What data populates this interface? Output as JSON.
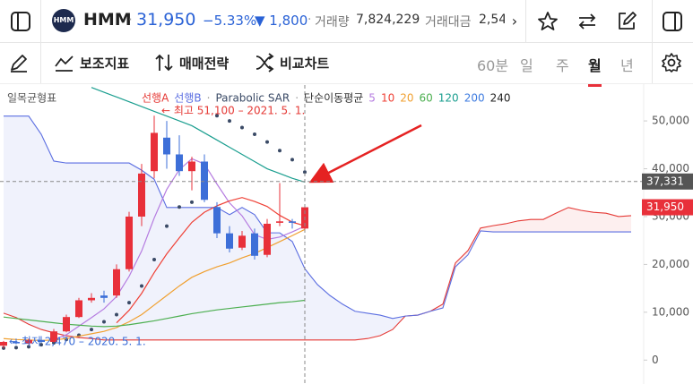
{
  "header": {
    "logo": "HMM",
    "symbol": "HMM",
    "price": "31,950",
    "change_pct": "−5.33%",
    "change": "▼ 1,800",
    "volume_label": "거래량",
    "volume": "7,824,229",
    "amount_label": "거래대금",
    "amount": "2,54"
  },
  "toolbar": {
    "indicators": "보조지표",
    "strategy": "매매전략",
    "compare": "비교차트",
    "periods": [
      "60분",
      "일",
      "주",
      "월",
      "년"
    ],
    "selected_period": "월"
  },
  "chart_data": {
    "type": "candlestick",
    "indicator_label": "일목균형표",
    "ma_label": "단순이동평균",
    "categories": [
      null,
      null,
      null,
      null,
      null,
      null,
      null,
      null,
      null,
      null,
      null,
      null,
      null,
      null,
      null,
      null,
      null,
      null,
      null,
      null,
      null,
      null,
      null,
      null,
      null,
      null,
      null,
      null,
      null,
      null,
      null,
      null,
      null,
      null,
      null,
      null,
      null,
      null,
      null,
      null,
      null,
      null,
      null,
      null,
      null,
      null,
      null,
      null,
      null,
      null,
      null
    ],
    "open": [
      3000,
      3800,
      3500,
      4200,
      3800,
      6000,
      9000,
      12500,
      13500,
      13500,
      19000,
      30000,
      39500,
      46500,
      43000,
      39500,
      41500,
      32000,
      26500,
      23500,
      26500,
      22000,
      28700,
      29000,
      27500,
      null,
      null,
      null,
      null,
      null,
      null,
      null,
      null,
      null,
      null,
      null,
      null,
      null,
      null,
      null,
      null,
      null,
      null,
      null,
      null,
      null,
      null,
      null,
      null,
      null,
      null
    ],
    "high": [
      4000,
      4500,
      4500,
      5000,
      6500,
      9500,
      13000,
      14000,
      14500,
      20000,
      31000,
      41000,
      51100,
      50000,
      47000,
      42500,
      43000,
      33000,
      28000,
      27000,
      27500,
      29500,
      37000,
      29500,
      32500,
      null,
      null,
      null,
      null,
      null,
      null,
      null,
      null,
      null,
      null,
      null,
      null,
      null,
      null,
      null,
      null,
      null,
      null,
      null,
      null,
      null,
      null,
      null,
      null,
      null,
      null
    ],
    "low": [
      2470,
      3300,
      3300,
      3600,
      3700,
      5800,
      8800,
      12000,
      12000,
      13000,
      18500,
      28000,
      38000,
      40000,
      38500,
      35500,
      33000,
      25500,
      22500,
      23000,
      21000,
      21500,
      28000,
      27500,
      27000,
      null,
      null,
      null,
      null,
      null,
      null,
      null,
      null,
      null,
      null,
      null,
      null,
      null,
      null,
      null,
      null,
      null,
      null,
      null,
      null,
      null,
      null,
      null,
      null,
      null,
      null
    ],
    "close": [
      3800,
      3500,
      4200,
      3800,
      6000,
      9000,
      12500,
      13000,
      13000,
      19000,
      30000,
      39000,
      47500,
      43000,
      39500,
      41500,
      33500,
      26500,
      23300,
      26000,
      21800,
      28500,
      29000,
      28700,
      31950,
      null,
      null,
      null,
      null,
      null,
      null,
      null,
      null,
      null,
      null,
      null,
      null,
      null,
      null,
      null,
      null,
      null,
      null,
      null,
      null,
      null,
      null,
      null,
      null,
      null,
      null
    ],
    "up_color": "#e8303a",
    "down_color": "#3d6fd8",
    "series": [
      {
        "name": "선행A",
        "color": "#e53935",
        "style": "cloud",
        "values": [
          9800,
          8900,
          7500,
          6400,
          5700,
          5100,
          4700,
          4500,
          4200,
          4200,
          4200,
          4200,
          4200,
          4200,
          4200,
          4200,
          4200,
          4200,
          4200,
          4200,
          4200,
          4200,
          4200,
          4200,
          4200,
          4200,
          4200,
          4200,
          4200,
          4500,
          5100,
          6400,
          9200,
          9400,
          10200,
          11700,
          20300,
          22900,
          27600,
          28100,
          28500,
          29100,
          29400,
          29400,
          30700,
          31900,
          31300,
          30900,
          30700,
          30000,
          30200
        ]
      },
      {
        "name": "선행B",
        "color": "#5b6ee1",
        "style": "cloud",
        "values": [
          51000,
          51000,
          51000,
          47200,
          41600,
          41200,
          41200,
          41200,
          41200,
          41200,
          41200,
          39700,
          37800,
          31900,
          31900,
          31900,
          31900,
          31900,
          30400,
          31900,
          30400,
          26600,
          26600,
          24800,
          19100,
          15800,
          13500,
          11700,
          10200,
          9800,
          9400,
          8700,
          9200,
          9400,
          10200,
          10900,
          19500,
          22000,
          27000,
          26800,
          26800,
          26800,
          26800,
          26800,
          26800,
          26800,
          26800,
          26800,
          26800,
          26800,
          26800
        ]
      },
      {
        "name": "Parabolic SAR",
        "color": "#3a4a66",
        "style": "dots",
        "values": [
          2500,
          2600,
          2800,
          3200,
          3600,
          4300,
          5200,
          6400,
          8000,
          9500,
          12000,
          15500,
          21000,
          28000,
          32000,
          33000,
          36000,
          51100,
          50000,
          48600,
          47200,
          45600,
          43800,
          41900,
          39300,
          null,
          null,
          null,
          null,
          null,
          null,
          null,
          null,
          null,
          null,
          null,
          null,
          null,
          null,
          null,
          null,
          null,
          null,
          null,
          null,
          null,
          null,
          null,
          null,
          null,
          null
        ]
      },
      {
        "name": "5",
        "color": "#b57be0",
        "style": "ma",
        "values": [
          null,
          null,
          null,
          null,
          4260,
          5300,
          7100,
          8860,
          10700,
          13300,
          17500,
          22800,
          29700,
          35700,
          39800,
          42100,
          41000,
          36800,
          32860,
          30160,
          26220,
          25220,
          25720,
          26800,
          27990,
          null,
          null,
          null,
          null,
          null,
          null,
          null,
          null,
          null,
          null,
          null,
          null,
          null,
          null,
          null,
          null,
          null,
          null,
          null,
          null,
          null,
          null,
          null,
          null,
          null,
          null
        ]
      },
      {
        "name": "10",
        "color": "#ef4136",
        "style": "ma",
        "values": [
          null,
          null,
          null,
          null,
          null,
          null,
          null,
          null,
          null,
          7780,
          10400,
          13950,
          18280,
          22200,
          25550,
          28800,
          30900,
          32250,
          33280,
          33980,
          33160,
          32110,
          30260,
          28830,
          28075,
          null,
          null,
          null,
          null,
          null,
          null,
          null,
          null,
          null,
          null,
          null,
          null,
          null,
          null,
          null,
          null,
          null,
          null,
          null,
          null,
          null,
          null,
          null,
          null,
          null,
          null
        ]
      },
      {
        "name": "20",
        "color": "#f0a030",
        "style": "ma",
        "values": [
          4500,
          4300,
          4200,
          4100,
          4200,
          4500,
          5000,
          5500,
          6000,
          6800,
          8000,
          9500,
          11500,
          13500,
          15500,
          17300,
          18500,
          19500,
          20300,
          21380,
          22280,
          23530,
          24770,
          26015,
          27310,
          null,
          null,
          null,
          null,
          null,
          null,
          null,
          null,
          null,
          null,
          null,
          null,
          null,
          null,
          null,
          null,
          null,
          null,
          null,
          null,
          null,
          null,
          null,
          null,
          null,
          null
        ]
      },
      {
        "name": "60",
        "color": "#4caf50",
        "style": "ma",
        "values": [
          9000,
          8700,
          8400,
          8100,
          7800,
          7500,
          7300,
          7100,
          7000,
          7100,
          7400,
          7800,
          8200,
          8700,
          9200,
          9700,
          10100,
          10500,
          10800,
          11100,
          11400,
          11700,
          12000,
          12200,
          12500,
          null,
          null,
          null,
          null,
          null,
          null,
          null,
          null,
          null,
          null,
          null,
          null,
          null,
          null,
          null,
          null,
          null,
          null,
          null,
          null,
          null,
          null,
          null,
          null,
          null,
          null
        ]
      },
      {
        "name": "120",
        "color": "#1a9e8f",
        "style": "ma",
        "values": [
          null,
          null,
          null,
          null,
          null,
          null,
          null,
          57000,
          56000,
          55000,
          54000,
          53000,
          52000,
          51000,
          50000,
          49000,
          47500,
          46000,
          44500,
          43000,
          41500,
          40000,
          39000,
          38000,
          37200,
          null,
          null,
          null,
          null,
          null,
          null,
          null,
          null,
          null,
          null,
          null,
          null,
          null,
          null,
          null,
          null,
          null,
          null,
          null,
          null,
          null,
          null,
          null,
          null,
          null,
          null
        ]
      },
      {
        "name": "200",
        "color": "#3d7be0",
        "style": "ma",
        "values": [
          null,
          null,
          null,
          null,
          null,
          null,
          null,
          null,
          null,
          null,
          null,
          null,
          null,
          null,
          null,
          null,
          null,
          null,
          null,
          null,
          null,
          null,
          null,
          null,
          null,
          null,
          null,
          null,
          null,
          null,
          null,
          null,
          null,
          null,
          null,
          null,
          null,
          null,
          null,
          null,
          null,
          null,
          null,
          null,
          null,
          null,
          null,
          null,
          null,
          null,
          null
        ]
      },
      {
        "name": "240",
        "color": "#222222",
        "style": "ma",
        "values": [
          null,
          null,
          null,
          null,
          null,
          null,
          null,
          null,
          null,
          null,
          null,
          null,
          null,
          null,
          null,
          null,
          null,
          null,
          null,
          null,
          null,
          null,
          null,
          null,
          null,
          null,
          null,
          null,
          null,
          null,
          null,
          null,
          null,
          null,
          null,
          null,
          null,
          null,
          null,
          null,
          null,
          null,
          null,
          null,
          null,
          null,
          null,
          null,
          null,
          null,
          null
        ]
      }
    ],
    "ylim": [
      -5000,
      57500
    ],
    "yticks": [
      0,
      {
        "value": 10000,
        "label": "10,000"
      },
      {
        "value": 20000,
        "label": "20,000"
      },
      {
        "value": 30000,
        "label": "30,000"
      },
      {
        "value": 40000,
        "label": "40,000"
      },
      {
        "value": 50000,
        "label": "50,000"
      }
    ],
    "high_note": {
      "text": "← 최고 51,100 – 2021. 5. 1.",
      "color": "#e53935"
    },
    "low_note": {
      "text": "← 최저 2,470 – 2020. 5. 1.",
      "color": "#3d6fd8"
    },
    "crosshair": {
      "value": 37331,
      "label": "37,331"
    },
    "last_price": {
      "value": 31950,
      "label": "31,950"
    }
  }
}
